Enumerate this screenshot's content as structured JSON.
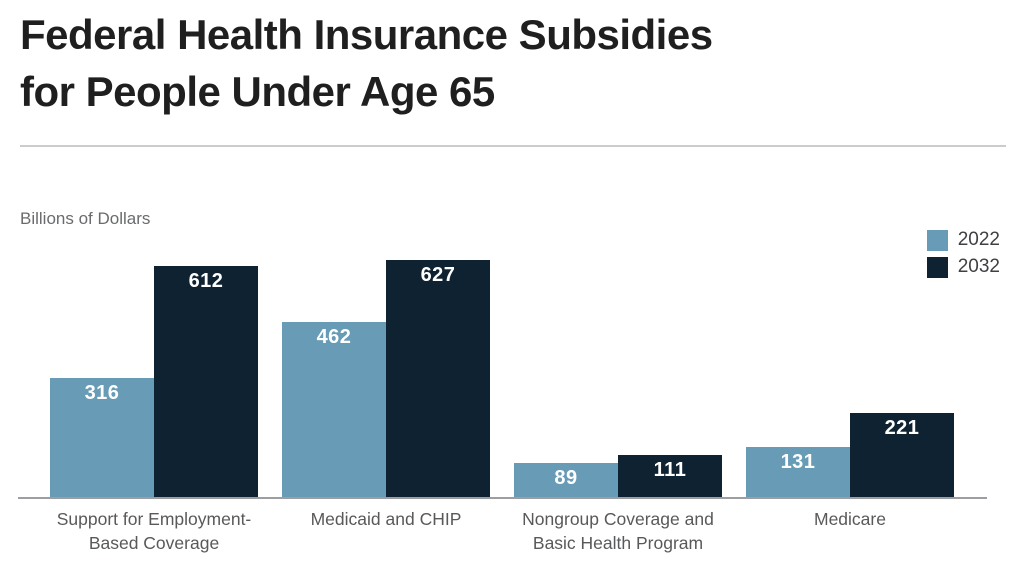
{
  "title": {
    "line1": "Federal Health Insurance Subsidies",
    "line2": "for People Under Age 65"
  },
  "axis_label": "Billions of Dollars",
  "legend": [
    {
      "label": "2022",
      "color": "#689BB5"
    },
    {
      "label": "2032",
      "color": "#0E2231"
    }
  ],
  "colors": {
    "series_2022": "#689BB5",
    "series_2032": "#0E2231",
    "title_text": "#1f1f1f",
    "category_text": "#58595b",
    "axis_line": "#9c9ea1",
    "value_label_text": "#ffffff"
  },
  "chart_data": {
    "type": "bar",
    "title": "Federal Health Insurance Subsidies for People Under Age 65",
    "ylabel": "Billions of Dollars",
    "xlabel": "",
    "categories": [
      "Support for Employment-Based Coverage",
      "Medicaid and CHIP",
      "Nongroup Coverage and Basic Health Program",
      "Medicare"
    ],
    "category_lines": [
      [
        "Support for Employment-",
        "Based Coverage"
      ],
      [
        "Medicaid and CHIP"
      ],
      [
        "Nongroup Coverage and",
        "Basic Health Program"
      ],
      [
        "Medicare"
      ]
    ],
    "series": [
      {
        "name": "2022",
        "color": "#689BB5",
        "values": [
          316,
          462,
          89,
          131
        ]
      },
      {
        "name": "2032",
        "color": "#0E2231",
        "values": [
          612,
          627,
          111,
          221
        ]
      }
    ],
    "ylim": [
      0,
      660
    ],
    "grid": false,
    "legend_position": "top-right",
    "value_labels": "inside-top"
  }
}
